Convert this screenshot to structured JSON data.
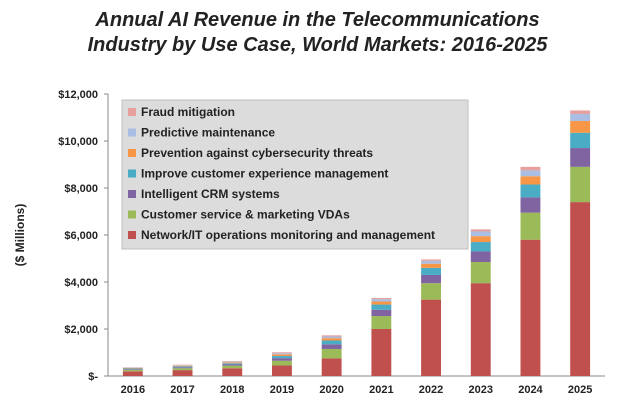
{
  "chart_data": {
    "type": "bar",
    "stacked": true,
    "title_line1": "Annual AI Revenue in the Telecommunications",
    "title_line2": "Industry by Use Case, World Markets: 2016-2025",
    "ylabel": "($ Millions)",
    "xlabel": "",
    "ylim": [
      0,
      12000
    ],
    "yticks": [
      0,
      2000,
      4000,
      6000,
      8000,
      10000,
      12000
    ],
    "ytick_labels": [
      "$-",
      "$2,000",
      "$4,000",
      "$6,000",
      "$8,000",
      "$10,000",
      "$12,000"
    ],
    "categories": [
      "2016",
      "2017",
      "2018",
      "2019",
      "2020",
      "2021",
      "2022",
      "2023",
      "2024",
      "2025"
    ],
    "legend_position": "top-left",
    "grid": false,
    "series": [
      {
        "name": "Network/IT operations monitoring and management",
        "color": "#C0504D",
        "values": [
          200,
          250,
          330,
          450,
          750,
          2000,
          3250,
          3950,
          5800,
          7400
        ]
      },
      {
        "name": "Customer service & marketing VDAs",
        "color": "#9BBB59",
        "values": [
          60,
          80,
          110,
          200,
          400,
          550,
          700,
          900,
          1150,
          1500
        ]
      },
      {
        "name": "Intelligent CRM systems",
        "color": "#8064A2",
        "values": [
          30,
          40,
          50,
          110,
          200,
          270,
          350,
          450,
          650,
          800
        ]
      },
      {
        "name": "Improve customer experience management",
        "color": "#4BACC6",
        "values": [
          30,
          40,
          50,
          90,
          160,
          220,
          300,
          400,
          550,
          650
        ]
      },
      {
        "name": "Prevention against cybersecurity threats",
        "color": "#F79646",
        "values": [
          20,
          30,
          40,
          70,
          100,
          130,
          180,
          250,
          350,
          500
        ]
      },
      {
        "name": "Predictive maintenance",
        "color": "#A9BEE2",
        "values": [
          15,
          20,
          30,
          50,
          70,
          100,
          120,
          200,
          250,
          300
        ]
      },
      {
        "name": "Fraud mitigation",
        "color": "#E6A09E",
        "values": [
          15,
          20,
          25,
          40,
          50,
          50,
          60,
          90,
          150,
          150
        ]
      }
    ]
  }
}
